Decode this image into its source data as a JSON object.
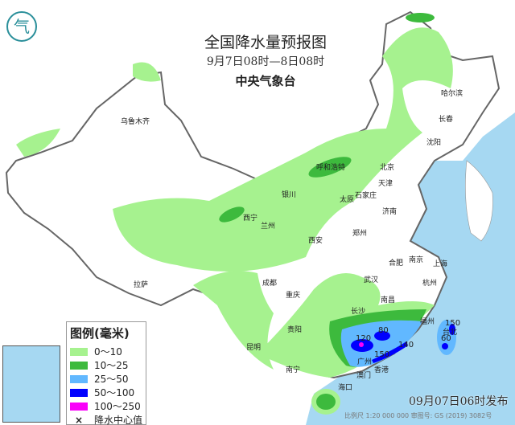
{
  "header": {
    "title": "全国降水量预报图",
    "period": "9月7日08时—8日08时",
    "issuer": "中央气象台",
    "logo_glyph": "气"
  },
  "colors": {
    "sea": "#a6d8f2",
    "land": "#ffffff",
    "rain_0_10": "#a6f28f",
    "rain_10_25": "#3dba3d",
    "rain_25_50": "#61b8ff",
    "rain_50_100": "#0000fe",
    "rain_100_250": "#fa00fa"
  },
  "legend": {
    "title": "图例(毫米)",
    "items": [
      {
        "label": "0～10",
        "color": "#a6f28f"
      },
      {
        "label": "10～25",
        "color": "#3dba3d"
      },
      {
        "label": "25～50",
        "color": "#61b8ff"
      },
      {
        "label": "50～100",
        "color": "#0000fe"
      },
      {
        "label": "100～250",
        "color": "#fa00fa"
      }
    ],
    "center_label": "降水中心值",
    "center_symbol": "×"
  },
  "cities": [
    "乌鲁木齐",
    "哈尔滨",
    "长春",
    "沈阳",
    "北京",
    "天津",
    "呼和浩特",
    "银川",
    "西宁",
    "兰州",
    "太原",
    "石家庄",
    "济南",
    "郑州",
    "西安",
    "南京",
    "合肥",
    "上海",
    "杭州",
    "武汉",
    "成都",
    "重庆",
    "南昌",
    "长沙",
    "拉萨",
    "贵阳",
    "昆明",
    "南宁",
    "广州",
    "香港",
    "澳门",
    "海口",
    "福州",
    "台北"
  ],
  "rain_centers": [
    "120",
    "80",
    "140",
    "150",
    "150",
    "60"
  ],
  "footer": {
    "issued": "09月07日06时发布",
    "scale": "比例尺 1:20 000 000    审图号: GS (2019) 3082号"
  }
}
